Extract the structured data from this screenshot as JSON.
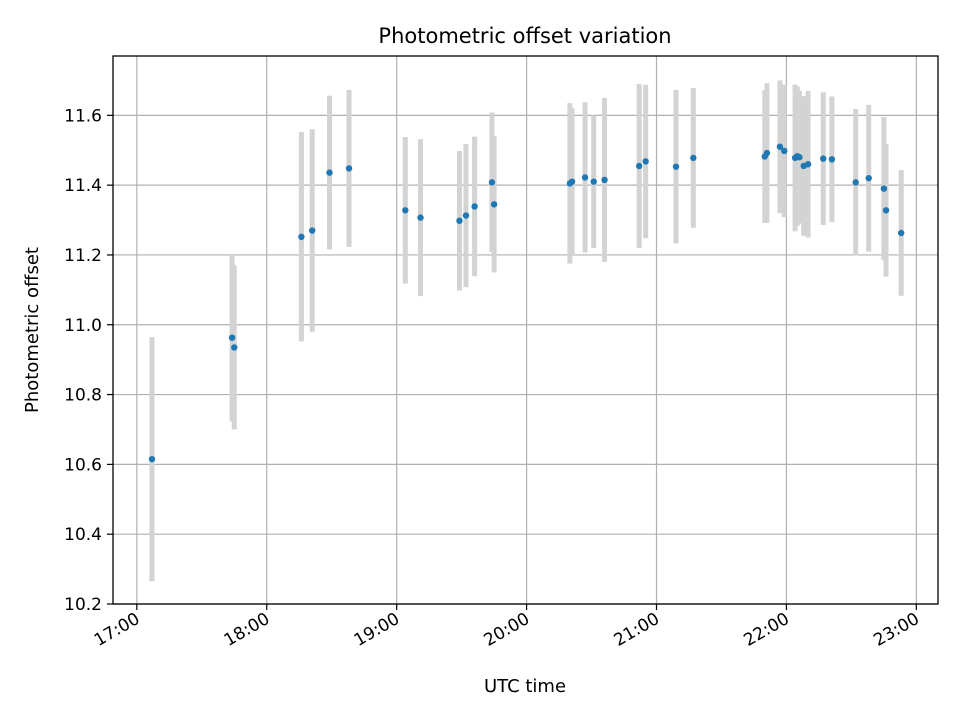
{
  "chart_data": {
    "type": "scatter",
    "title": "Photometric offset variation",
    "xlabel": "UTC time",
    "ylabel": "Photometric offset",
    "x_tick_labels": [
      "17:00",
      "18:00",
      "19:00",
      "20:00",
      "21:00",
      "22:00",
      "23:00"
    ],
    "y_tick_labels": [
      "10.2",
      "10.4",
      "10.6",
      "10.8",
      "11.0",
      "11.2",
      "11.4",
      "11.6"
    ],
    "xlim": [
      "16:49",
      "23:10"
    ],
    "ylim": [
      10.2,
      11.77
    ],
    "grid": true,
    "colors": {
      "point": "#1f77b4",
      "errorbar": "#d3d3d3",
      "grid": "#b0b0b0"
    },
    "points": [
      {
        "t": "17:07",
        "y": 10.615,
        "err": 0.35
      },
      {
        "t": "17:44",
        "y": 10.963,
        "err": 0.24
      },
      {
        "t": "17:45",
        "y": 10.935,
        "err": 0.235
      },
      {
        "t": "18:16",
        "y": 11.252,
        "err": 0.3
      },
      {
        "t": "18:21",
        "y": 11.27,
        "err": 0.29
      },
      {
        "t": "18:29",
        "y": 11.436,
        "err": 0.22
      },
      {
        "t": "18:38",
        "y": 11.448,
        "err": 0.225
      },
      {
        "t": "19:04",
        "y": 11.328,
        "err": 0.21
      },
      {
        "t": "19:11",
        "y": 11.307,
        "err": 0.225
      },
      {
        "t": "19:29",
        "y": 11.298,
        "err": 0.2
      },
      {
        "t": "19:32",
        "y": 11.313,
        "err": 0.205
      },
      {
        "t": "19:36",
        "y": 11.339,
        "err": 0.2
      },
      {
        "t": "19:44",
        "y": 11.408,
        "err": 0.2
      },
      {
        "t": "19:45",
        "y": 11.345,
        "err": 0.195
      },
      {
        "t": "20:20",
        "y": 11.405,
        "err": 0.23
      },
      {
        "t": "20:21",
        "y": 11.41,
        "err": 0.21
      },
      {
        "t": "20:27",
        "y": 11.422,
        "err": 0.215
      },
      {
        "t": "20:31",
        "y": 11.41,
        "err": 0.19
      },
      {
        "t": "20:36",
        "y": 11.415,
        "err": 0.235
      },
      {
        "t": "20:52",
        "y": 11.455,
        "err": 0.235
      },
      {
        "t": "20:55",
        "y": 11.468,
        "err": 0.22
      },
      {
        "t": "21:09",
        "y": 11.453,
        "err": 0.22
      },
      {
        "t": "21:17",
        "y": 11.478,
        "err": 0.2
      },
      {
        "t": "21:50",
        "y": 11.482,
        "err": 0.19
      },
      {
        "t": "21:51",
        "y": 11.492,
        "err": 0.2
      },
      {
        "t": "21:57",
        "y": 11.51,
        "err": 0.19
      },
      {
        "t": "21:59",
        "y": 11.498,
        "err": 0.19
      },
      {
        "t": "22:04",
        "y": 11.478,
        "err": 0.21
      },
      {
        "t": "22:05",
        "y": 11.483,
        "err": 0.2
      },
      {
        "t": "22:06",
        "y": 11.48,
        "err": 0.19
      },
      {
        "t": "22:08",
        "y": 11.455,
        "err": 0.2
      },
      {
        "t": "22:10",
        "y": 11.46,
        "err": 0.21
      },
      {
        "t": "22:17",
        "y": 11.476,
        "err": 0.19
      },
      {
        "t": "22:21",
        "y": 11.474,
        "err": 0.18
      },
      {
        "t": "22:32",
        "y": 11.408,
        "err": 0.21
      },
      {
        "t": "22:38",
        "y": 11.42,
        "err": 0.21
      },
      {
        "t": "22:45",
        "y": 11.39,
        "err": 0.205
      },
      {
        "t": "22:46",
        "y": 11.328,
        "err": 0.19
      },
      {
        "t": "22:53",
        "y": 11.263,
        "err": 0.18
      }
    ]
  }
}
